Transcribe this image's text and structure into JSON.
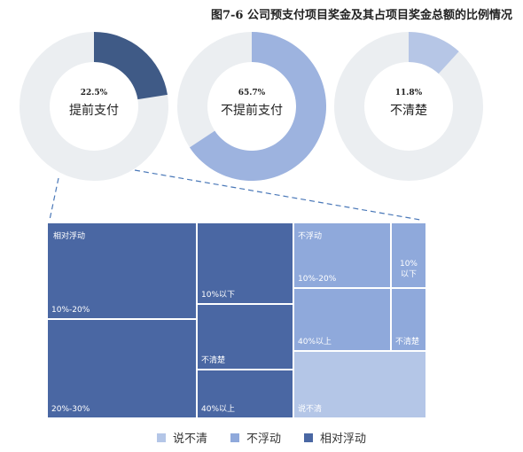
{
  "title": "图7-6 公司预支付项目奖金及其占项目奖金总额的比例情况",
  "colors": {
    "track": "#ebeef1",
    "advance": "#3f5a86",
    "no_advance": "#9db3df",
    "unclear": "#b6c6e6",
    "tm_relative": "#4a67a3",
    "tm_nonfloat": "#8fa9db",
    "tm_unclear": "#b4c6e7",
    "connector": "#4a78b8"
  },
  "chart_data": [
    {
      "type": "pie",
      "variant": "donut",
      "slices": [
        {
          "label": "提前支付",
          "value": 22.5,
          "display": "22.5%"
        },
        {
          "label": "不提前支付",
          "value": 65.7,
          "display": "65.7%"
        },
        {
          "label": "不清楚",
          "value": 11.8,
          "display": "11.8%"
        }
      ]
    },
    {
      "type": "treemap",
      "parent": "提前支付",
      "legend_position": "bottom",
      "legend": [
        "说不清",
        "不浮动",
        "相对浮动"
      ],
      "groups": [
        {
          "name": "相对浮动",
          "items": [
            {
              "label": "10%-20%"
            },
            {
              "label": "20%-30%"
            },
            {
              "label": "10%以下"
            },
            {
              "label": "不清楚"
            },
            {
              "label": "40%以上"
            }
          ]
        },
        {
          "name": "不浮动",
          "items": [
            {
              "label": "10%-20%"
            },
            {
              "label": "10%以下"
            },
            {
              "label": "40%以上"
            },
            {
              "label": "不清楚"
            }
          ]
        },
        {
          "name": "说不清",
          "items": [
            {
              "label": "说不清"
            }
          ]
        }
      ]
    }
  ]
}
